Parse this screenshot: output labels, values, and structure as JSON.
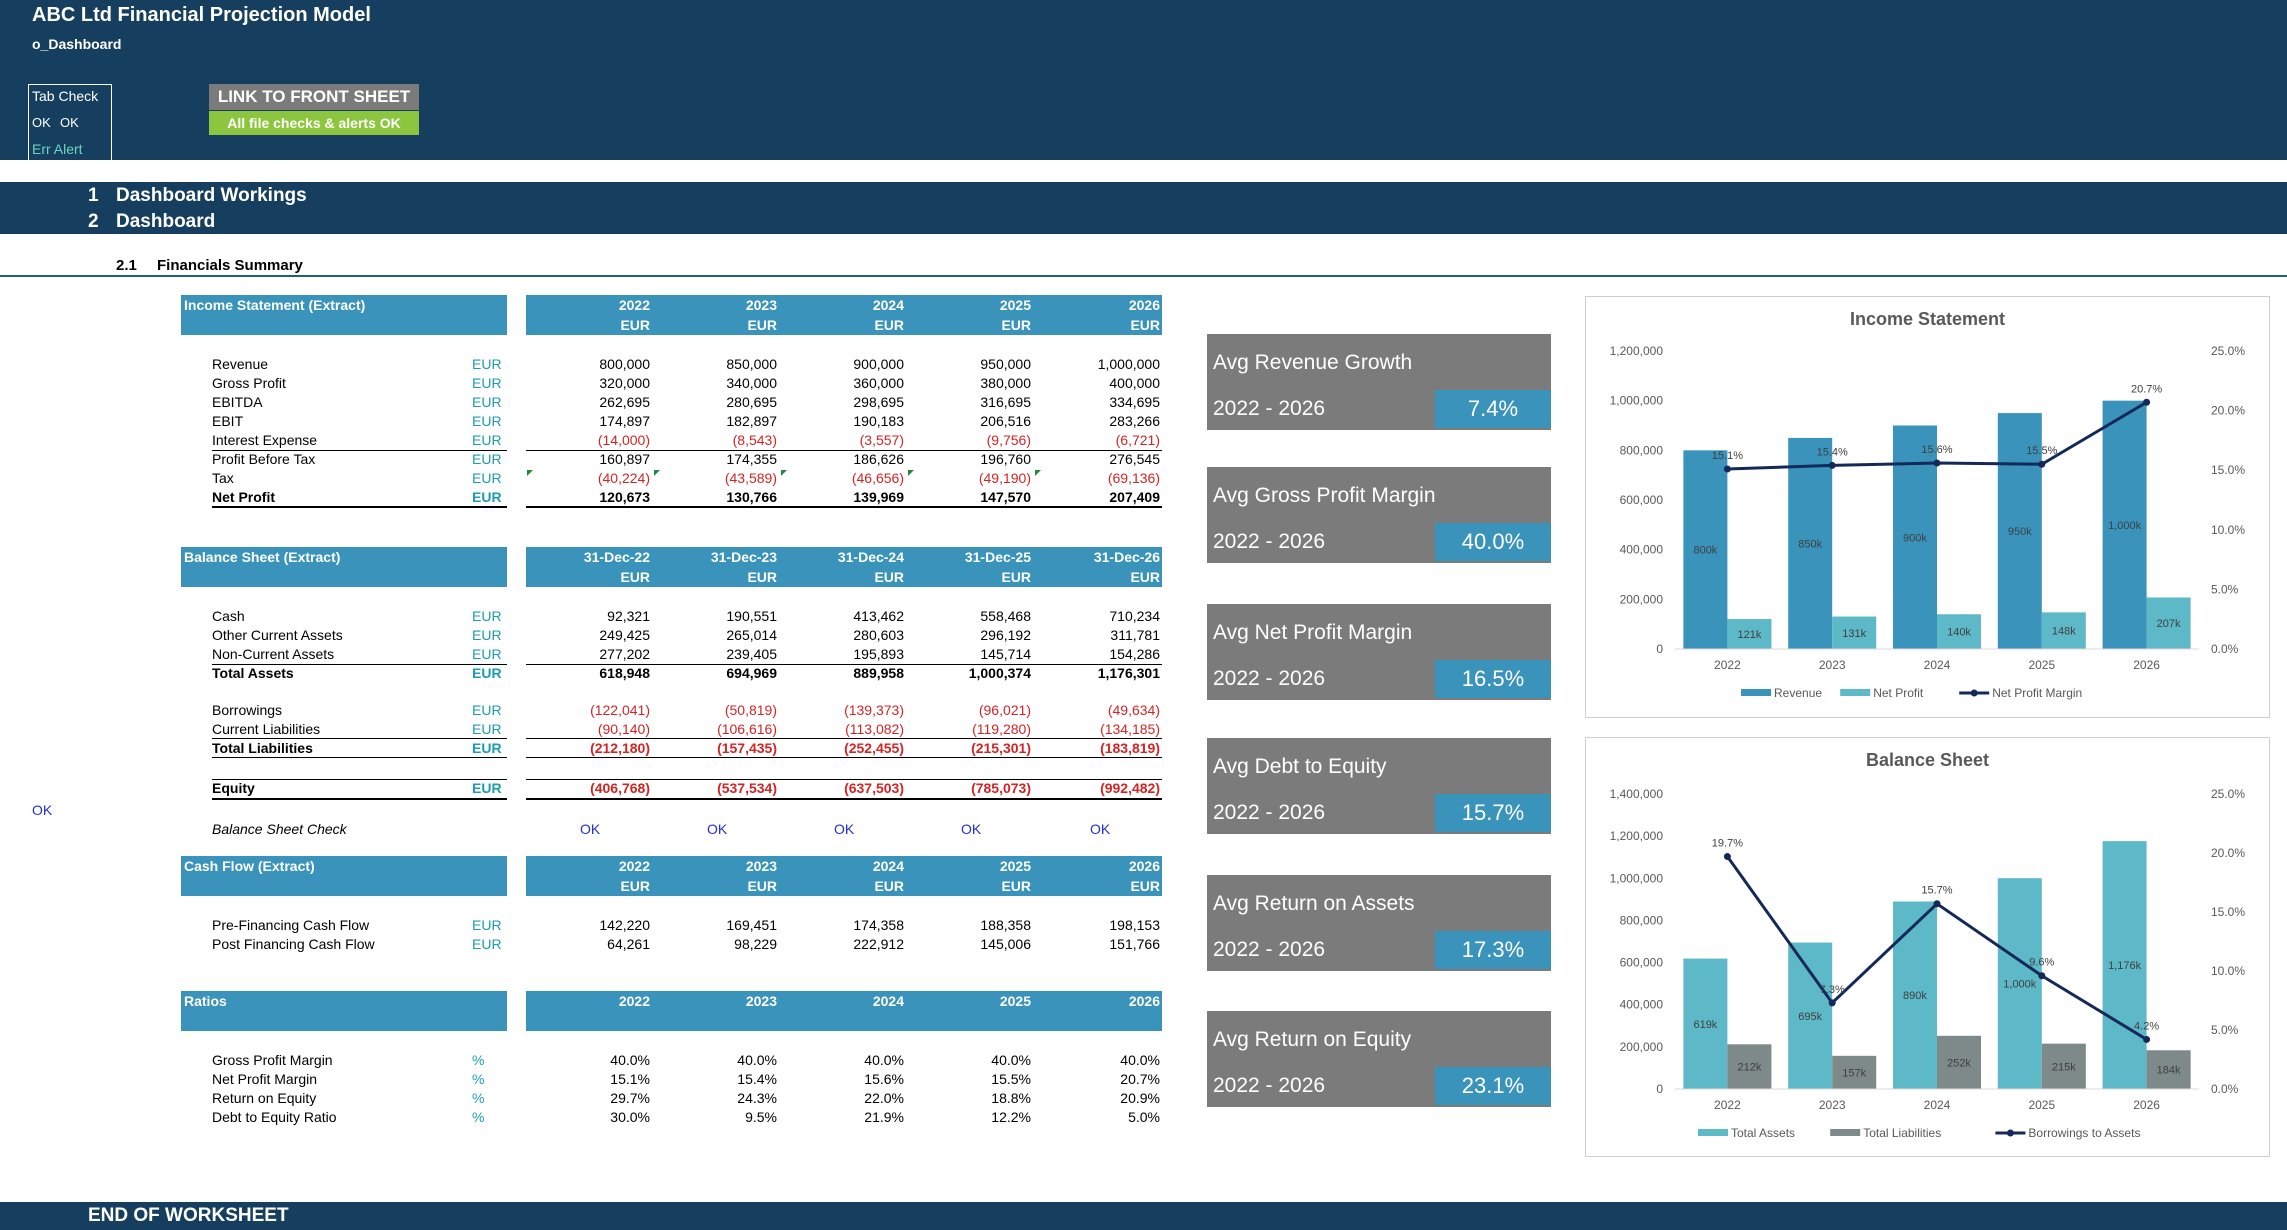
{
  "header": {
    "title": "ABC Ltd Financial Projection Model",
    "subtitle": "o_Dashboard",
    "tab_check": {
      "title": "Tab Check",
      "ok1": "OK",
      "ok2": "OK",
      "err_alert": "Err Alert"
    },
    "link_button": "LINK TO FRONT SHEET",
    "checks_status": "All file checks & alerts OK"
  },
  "sections": [
    {
      "num": "1",
      "label": "Dashboard Workings"
    },
    {
      "num": "2",
      "label": "Dashboard"
    }
  ],
  "subsection": {
    "num": "2.1",
    "label": "Financials Summary"
  },
  "side_ok": "OK",
  "income": {
    "title": "Income Statement (Extract)",
    "years": [
      "2022",
      "2023",
      "2024",
      "2025",
      "2026"
    ],
    "unit": "EUR",
    "rows": [
      {
        "label": "Revenue",
        "unit": "EUR",
        "values": [
          "800,000",
          "850,000",
          "900,000",
          "950,000",
          "1,000,000"
        ]
      },
      {
        "label": "Gross Profit",
        "unit": "EUR",
        "values": [
          "320,000",
          "340,000",
          "360,000",
          "380,000",
          "400,000"
        ]
      },
      {
        "label": "EBITDA",
        "unit": "EUR",
        "values": [
          "262,695",
          "280,695",
          "298,695",
          "316,695",
          "334,695"
        ]
      },
      {
        "label": "EBIT",
        "unit": "EUR",
        "values": [
          "174,897",
          "182,897",
          "190,183",
          "206,516",
          "283,266"
        ]
      },
      {
        "label": "Interest Expense",
        "unit": "EUR",
        "values": [
          "(14,000)",
          "(8,543)",
          "(3,557)",
          "(9,756)",
          "(6,721)"
        ]
      },
      {
        "label": "Profit Before Tax",
        "unit": "EUR",
        "values": [
          "160,897",
          "174,355",
          "186,626",
          "196,760",
          "276,545"
        ]
      },
      {
        "label": "Tax",
        "unit": "EUR",
        "values": [
          "(40,224)",
          "(43,589)",
          "(46,656)",
          "(49,190)",
          "(69,136)"
        ]
      },
      {
        "label": "Net Profit",
        "unit": "EUR",
        "values": [
          "120,673",
          "130,766",
          "139,969",
          "147,570",
          "207,409"
        ]
      }
    ]
  },
  "balance": {
    "title": "Balance Sheet (Extract)",
    "dates": [
      "31-Dec-22",
      "31-Dec-23",
      "31-Dec-24",
      "31-Dec-25",
      "31-Dec-26"
    ],
    "unit": "EUR",
    "rows": [
      {
        "label": "Cash",
        "unit": "EUR",
        "values": [
          "92,321",
          "190,551",
          "413,462",
          "558,468",
          "710,234"
        ]
      },
      {
        "label": "Other Current Assets",
        "unit": "EUR",
        "values": [
          "249,425",
          "265,014",
          "280,603",
          "296,192",
          "311,781"
        ]
      },
      {
        "label": "Non-Current Assets",
        "unit": "EUR",
        "values": [
          "277,202",
          "239,405",
          "195,893",
          "145,714",
          "154,286"
        ]
      },
      {
        "label": "Total Assets",
        "unit": "EUR",
        "values": [
          "618,948",
          "694,969",
          "889,958",
          "1,000,374",
          "1,176,301"
        ]
      },
      {
        "label": "Borrowings",
        "unit": "EUR",
        "values": [
          "(122,041)",
          "(50,819)",
          "(139,373)",
          "(96,021)",
          "(49,634)"
        ]
      },
      {
        "label": "Current Liabilities",
        "unit": "EUR",
        "values": [
          "(90,140)",
          "(106,616)",
          "(113,082)",
          "(119,280)",
          "(134,185)"
        ]
      },
      {
        "label": "Total Liabilities",
        "unit": "EUR",
        "values": [
          "(212,180)",
          "(157,435)",
          "(252,455)",
          "(215,301)",
          "(183,819)"
        ]
      },
      {
        "label": "Equity",
        "unit": "EUR",
        "values": [
          "(406,768)",
          "(537,534)",
          "(637,503)",
          "(785,073)",
          "(992,482)"
        ]
      }
    ],
    "check_label": "Balance Sheet Check",
    "checks": [
      "OK",
      "OK",
      "OK",
      "OK",
      "OK"
    ]
  },
  "cashflow": {
    "title": "Cash Flow (Extract)",
    "years": [
      "2022",
      "2023",
      "2024",
      "2025",
      "2026"
    ],
    "unit": "EUR",
    "rows": [
      {
        "label": "Pre-Financing Cash Flow",
        "unit": "EUR",
        "values": [
          "142,220",
          "169,451",
          "174,358",
          "188,358",
          "198,153"
        ]
      },
      {
        "label": "Post Financing Cash Flow",
        "unit": "EUR",
        "values": [
          "64,261",
          "98,229",
          "222,912",
          "145,006",
          "151,766"
        ]
      }
    ]
  },
  "ratios": {
    "title": "Ratios",
    "years": [
      "2022",
      "2023",
      "2024",
      "2025",
      "2026"
    ],
    "rows": [
      {
        "label": "Gross Profit Margin",
        "unit": "%",
        "values": [
          "40.0%",
          "40.0%",
          "40.0%",
          "40.0%",
          "40.0%"
        ]
      },
      {
        "label": "Net Profit Margin",
        "unit": "%",
        "values": [
          "15.1%",
          "15.4%",
          "15.6%",
          "15.5%",
          "20.7%"
        ]
      },
      {
        "label": "Return on Equity",
        "unit": "%",
        "values": [
          "29.7%",
          "24.3%",
          "22.0%",
          "18.8%",
          "20.9%"
        ]
      },
      {
        "label": "Debt to Equity Ratio",
        "unit": "%",
        "values": [
          "30.0%",
          "9.5%",
          "21.9%",
          "12.2%",
          "5.0%"
        ]
      }
    ]
  },
  "kpis": [
    {
      "title": "Avg Revenue Growth",
      "period": "2022 - 2026",
      "value": "7.4%"
    },
    {
      "title": "Avg Gross Profit Margin",
      "period": "2022 - 2026",
      "value": "40.0%"
    },
    {
      "title": "Avg Net Profit Margin",
      "period": "2022 - 2026",
      "value": "16.5%"
    },
    {
      "title": "Avg Debt to Equity",
      "period": "2022 - 2026",
      "value": "15.7%"
    },
    {
      "title": "Avg Return on Assets",
      "period": "2022 - 2026",
      "value": "17.3%"
    },
    {
      "title": "Avg Return on Equity",
      "period": "2022 - 2026",
      "value": "23.1%"
    }
  ],
  "colors": {
    "navy": "#163e5e",
    "blue": "#3993bb",
    "teal": "#5db8c8",
    "grey": "#7b7b7b",
    "dark_grey": "#7e8a8a",
    "line": "#14285a",
    "green": "#8cc63f",
    "negative": "#d22525"
  },
  "footer": {
    "label": "END OF WORKSHEET"
  },
  "chart_data": [
    {
      "type": "bar",
      "title": "Income Statement",
      "categories": [
        "2022",
        "2023",
        "2024",
        "2025",
        "2026"
      ],
      "left_axis": {
        "min": 0,
        "max": 1200000,
        "ticks": [
          "0",
          "200,000",
          "400,000",
          "600,000",
          "800,000",
          "1,000,000",
          "1,200,000"
        ]
      },
      "right_axis": {
        "min": 0,
        "max": 25,
        "ticks": [
          "0.0%",
          "5.0%",
          "10.0%",
          "15.0%",
          "20.0%",
          "25.0%"
        ]
      },
      "series": [
        {
          "name": "Revenue",
          "values": [
            800000,
            850000,
            900000,
            950000,
            1000000
          ],
          "labels": [
            "800k",
            "850k",
            "900k",
            "950k",
            "1,000k"
          ]
        },
        {
          "name": "Net Profit",
          "values": [
            120673,
            130766,
            139969,
            147570,
            207409
          ],
          "labels": [
            "121k",
            "131k",
            "140k",
            "148k",
            "207k"
          ]
        },
        {
          "name": "Net Profit Margin",
          "type": "line",
          "axis": "right",
          "values": [
            15.1,
            15.4,
            15.6,
            15.5,
            20.7
          ],
          "labels": [
            "15.1%",
            "15.4%",
            "15.6%",
            "15.5%",
            "20.7%"
          ]
        }
      ],
      "legend": "bottom"
    },
    {
      "type": "bar",
      "title": "Balance Sheet",
      "categories": [
        "2022",
        "2023",
        "2024",
        "2025",
        "2026"
      ],
      "left_axis": {
        "min": 0,
        "max": 1400000,
        "ticks": [
          "0",
          "200,000",
          "400,000",
          "600,000",
          "800,000",
          "1,000,000",
          "1,200,000",
          "1,400,000"
        ]
      },
      "right_axis": {
        "min": 0,
        "max": 25,
        "ticks": [
          "0.0%",
          "5.0%",
          "10.0%",
          "15.0%",
          "20.0%",
          "25.0%"
        ]
      },
      "series": [
        {
          "name": "Total Assets",
          "values": [
            618948,
            694969,
            889958,
            1000374,
            1176301
          ],
          "labels": [
            "619k",
            "695k",
            "890k",
            "1,000k",
            "1,176k"
          ]
        },
        {
          "name": "Total Liabilities",
          "values": [
            212180,
            157435,
            252455,
            215301,
            183819
          ],
          "labels": [
            "212k",
            "157k",
            "252k",
            "215k",
            "184k"
          ]
        },
        {
          "name": "Borrowings to Assets",
          "type": "line",
          "axis": "right",
          "values": [
            19.7,
            7.3,
            15.7,
            9.6,
            4.2
          ],
          "labels": [
            "19.7%",
            "7.3%",
            "15.7%",
            "9.6%",
            "4.2%"
          ]
        }
      ],
      "legend": "bottom"
    }
  ]
}
